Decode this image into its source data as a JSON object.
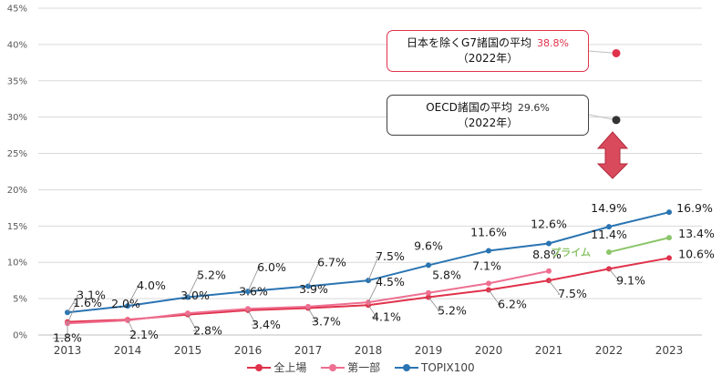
{
  "chart_data": {
    "type": "line",
    "x": [
      "2013",
      "2014",
      "2015",
      "2016",
      "2017",
      "2018",
      "2019",
      "2020",
      "2021",
      "2022",
      "2023"
    ],
    "ylim": [
      0,
      45
    ],
    "ytick_labels": [
      "0%",
      "5%",
      "10%",
      "15%",
      "20%",
      "25%",
      "30%",
      "35%",
      "40%",
      "45%"
    ],
    "grid": true,
    "legend_position": "bottom",
    "series": [
      {
        "name": "全上場",
        "color": "#e0324b",
        "values": [
          1.8,
          2.1,
          2.8,
          3.4,
          3.7,
          4.1,
          5.2,
          6.2,
          7.5,
          9.1,
          10.6
        ],
        "labels": [
          "1.8%",
          "2.1%",
          "2.8%",
          "3.4%",
          "3.7%",
          "4.1%",
          "5.2%",
          "6.2%",
          "7.5%",
          "9.1%",
          "10.6%"
        ]
      },
      {
        "name": "第一部",
        "color": "#ee6f91",
        "values": [
          1.6,
          2.0,
          3.0,
          3.6,
          3.9,
          4.5,
          5.8,
          7.1,
          8.8,
          null,
          null
        ],
        "labels": [
          "1.6%",
          "2.0%",
          "3.0%",
          "3.6%",
          "3.9%",
          "4.5%",
          "5.8%",
          "7.1%",
          "8.8%",
          "",
          ""
        ]
      },
      {
        "name": "TOPIX100",
        "color": "#2a74b2",
        "values": [
          3.1,
          4.0,
          5.2,
          6.0,
          6.7,
          7.5,
          9.6,
          11.6,
          12.6,
          14.9,
          16.9
        ],
        "labels": [
          "3.1%",
          "4.0%",
          "5.2%",
          "6.0%",
          "6.7%",
          "7.5%",
          "9.6%",
          "11.6%",
          "12.6%",
          "14.9%",
          "16.9%"
        ]
      },
      {
        "name": "プライム",
        "color": "#8cc56a",
        "values": [
          null,
          null,
          null,
          null,
          null,
          null,
          null,
          null,
          null,
          11.4,
          13.4
        ],
        "labels": [
          "",
          "",
          "",
          "",
          "",
          "",
          "",
          "",
          "",
          "11.4%",
          "13.4%"
        ]
      }
    ],
    "references": [
      {
        "name": "日本を除くG7諸国の平均",
        "value": 38.8,
        "value_label": "38.8%",
        "year": "（2022年）",
        "color": "#e0324b",
        "x": "2022"
      },
      {
        "name": "OECD諸国の平均",
        "value": 29.6,
        "value_label": "29.6%",
        "year": "（2022年）",
        "color": "#333333",
        "x": "2022"
      }
    ],
    "annotations": {
      "prime_label": "プライム"
    }
  }
}
